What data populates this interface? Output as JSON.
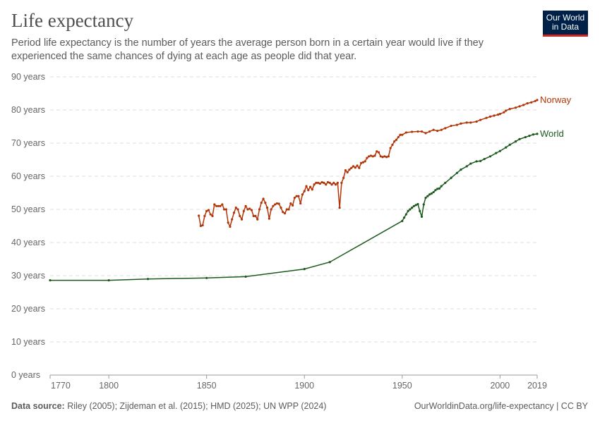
{
  "header": {
    "title": "Life expectancy",
    "subtitle": "Period life expectancy is the number of years the average person born in a certain year would live if they experienced the same chances of dying at each age as people did that year.",
    "logo_line1": "Our World",
    "logo_line2": "in Data"
  },
  "footer": {
    "source_label": "Data source:",
    "source_text": " Riley (2005); Zijdeman et al. (2015); HMD (2025); UN WPP (2024)",
    "link": "OurWorldinData.org/life-expectancy | CC BY"
  },
  "chart_data": {
    "type": "line",
    "title": "Life expectancy",
    "xlim": [
      1770,
      2019
    ],
    "ylim": [
      0,
      90
    ],
    "x_ticks": [
      1770,
      1800,
      1850,
      1900,
      1950,
      2000,
      2019
    ],
    "y_ticks": [
      0,
      10,
      20,
      30,
      40,
      50,
      60,
      70,
      80,
      90
    ],
    "y_tick_labels": [
      "0 years",
      "10 years",
      "20 years",
      "30 years",
      "40 years",
      "50 years",
      "60 years",
      "70 years",
      "80 years",
      "90 years"
    ],
    "grid": "horizontal dashed",
    "series": [
      {
        "name": "Norway",
        "color": "#b13507",
        "points": [
          [
            1846,
            48.1
          ],
          [
            1847,
            45.0
          ],
          [
            1848,
            45.2
          ],
          [
            1849,
            48.0
          ],
          [
            1850,
            49.5
          ],
          [
            1851,
            49.8
          ],
          [
            1852,
            48.5
          ],
          [
            1853,
            48.0
          ],
          [
            1854,
            51.5
          ],
          [
            1855,
            51.0
          ],
          [
            1856,
            51.0
          ],
          [
            1857,
            51.0
          ],
          [
            1858,
            51.5
          ],
          [
            1859,
            50.0
          ],
          [
            1860,
            50.0
          ],
          [
            1861,
            46.0
          ],
          [
            1862,
            44.8
          ],
          [
            1863,
            47.0
          ],
          [
            1864,
            49.0
          ],
          [
            1865,
            50.5
          ],
          [
            1866,
            50.0
          ],
          [
            1867,
            48.0
          ],
          [
            1868,
            47.0
          ],
          [
            1869,
            49.5
          ],
          [
            1870,
            51.0
          ],
          [
            1871,
            50.0
          ],
          [
            1872,
            50.2
          ],
          [
            1873,
            49.8
          ],
          [
            1874,
            48.0
          ],
          [
            1875,
            48.0
          ],
          [
            1876,
            47.0
          ],
          [
            1877,
            50.0
          ],
          [
            1878,
            52.0
          ],
          [
            1879,
            53.2
          ],
          [
            1880,
            52.0
          ],
          [
            1881,
            50.5
          ],
          [
            1882,
            47.2
          ],
          [
            1883,
            50.0
          ],
          [
            1884,
            51.0
          ],
          [
            1885,
            51.5
          ],
          [
            1886,
            51.8
          ],
          [
            1887,
            51.7
          ],
          [
            1888,
            50.5
          ],
          [
            1889,
            49.2
          ],
          [
            1890,
            48.8
          ],
          [
            1891,
            50.0
          ],
          [
            1892,
            50.0
          ],
          [
            1893,
            51.8
          ],
          [
            1894,
            51.2
          ],
          [
            1895,
            53.5
          ],
          [
            1896,
            54.0
          ],
          [
            1897,
            54.0
          ],
          [
            1898,
            51.8
          ],
          [
            1899,
            54.5
          ],
          [
            1900,
            55.5
          ],
          [
            1901,
            57.0
          ],
          [
            1902,
            55.8
          ],
          [
            1903,
            56.8
          ],
          [
            1904,
            56.0
          ],
          [
            1905,
            57.5
          ],
          [
            1906,
            58.0
          ],
          [
            1907,
            58.0
          ],
          [
            1908,
            57.8
          ],
          [
            1909,
            58.2
          ],
          [
            1910,
            58.0
          ],
          [
            1911,
            57.5
          ],
          [
            1912,
            58.2
          ],
          [
            1913,
            58.0
          ],
          [
            1914,
            57.5
          ],
          [
            1915,
            58.0
          ],
          [
            1916,
            57.5
          ],
          [
            1917,
            58.0
          ],
          [
            1918,
            50.5
          ],
          [
            1919,
            58.0
          ],
          [
            1920,
            59.5
          ],
          [
            1921,
            61.8
          ],
          [
            1922,
            61.2
          ],
          [
            1923,
            62.0
          ],
          [
            1924,
            62.5
          ],
          [
            1925,
            63.0
          ],
          [
            1926,
            62.6
          ],
          [
            1927,
            63.2
          ],
          [
            1928,
            62.5
          ],
          [
            1929,
            64.0
          ],
          [
            1930,
            64.2
          ],
          [
            1931,
            64.5
          ],
          [
            1932,
            65.5
          ],
          [
            1933,
            66.0
          ],
          [
            1934,
            66.2
          ],
          [
            1935,
            66.0
          ],
          [
            1936,
            66.2
          ],
          [
            1937,
            67.5
          ],
          [
            1938,
            67.2
          ],
          [
            1939,
            66.0
          ],
          [
            1940,
            65.8
          ],
          [
            1941,
            66.0
          ],
          [
            1942,
            65.8
          ],
          [
            1943,
            66.0
          ],
          [
            1944,
            68.5
          ],
          [
            1945,
            69.5
          ],
          [
            1946,
            70.5
          ],
          [
            1947,
            71.0
          ],
          [
            1948,
            71.8
          ],
          [
            1949,
            72.5
          ],
          [
            1950,
            72.5
          ],
          [
            1952,
            73.2
          ],
          [
            1955,
            73.4
          ],
          [
            1958,
            73.5
          ],
          [
            1960,
            73.5
          ],
          [
            1962,
            73.0
          ],
          [
            1964,
            73.5
          ],
          [
            1966,
            74.0
          ],
          [
            1968,
            73.7
          ],
          [
            1970,
            74.0
          ],
          [
            1972,
            74.5
          ],
          [
            1975,
            75.2
          ],
          [
            1978,
            75.5
          ],
          [
            1980,
            75.9
          ],
          [
            1983,
            76.2
          ],
          [
            1985,
            76.2
          ],
          [
            1988,
            76.5
          ],
          [
            1990,
            77.0
          ],
          [
            1993,
            77.6
          ],
          [
            1995,
            78.0
          ],
          [
            1997,
            78.3
          ],
          [
            1999,
            78.6
          ],
          [
            2000,
            78.8
          ],
          [
            2002,
            79.3
          ],
          [
            2003,
            79.8
          ],
          [
            2005,
            80.3
          ],
          [
            2008,
            80.7
          ],
          [
            2010,
            81.1
          ],
          [
            2012,
            81.5
          ],
          [
            2014,
            82.0
          ],
          [
            2016,
            82.3
          ],
          [
            2018,
            82.7
          ],
          [
            2019,
            83.0
          ]
        ]
      },
      {
        "name": "World",
        "color": "#1d5a1d",
        "points": [
          [
            1770,
            28.6
          ],
          [
            1800,
            28.6
          ],
          [
            1820,
            29.0
          ],
          [
            1850,
            29.3
          ],
          [
            1870,
            29.7
          ],
          [
            1900,
            32.0
          ],
          [
            1913,
            34.1
          ],
          [
            1950,
            46.5
          ],
          [
            1951,
            47.5
          ],
          [
            1952,
            48.5
          ],
          [
            1953,
            49.5
          ],
          [
            1954,
            50.0
          ],
          [
            1955,
            50.5
          ],
          [
            1956,
            51.0
          ],
          [
            1957,
            51.3
          ],
          [
            1958,
            51.6
          ],
          [
            1959,
            49.5
          ],
          [
            1960,
            47.8
          ],
          [
            1961,
            51.5
          ],
          [
            1962,
            53.5
          ],
          [
            1963,
            54.0
          ],
          [
            1964,
            54.5
          ],
          [
            1965,
            54.8
          ],
          [
            1966,
            55.2
          ],
          [
            1967,
            55.8
          ],
          [
            1968,
            56.2
          ],
          [
            1969,
            56.3
          ],
          [
            1970,
            57.0
          ],
          [
            1972,
            58.0
          ],
          [
            1975,
            59.5
          ],
          [
            1978,
            61.0
          ],
          [
            1980,
            62.0
          ],
          [
            1983,
            63.0
          ],
          [
            1985,
            63.8
          ],
          [
            1988,
            64.5
          ],
          [
            1990,
            64.6
          ],
          [
            1992,
            65.2
          ],
          [
            1995,
            66.0
          ],
          [
            1998,
            67.0
          ],
          [
            2000,
            67.6
          ],
          [
            2003,
            68.7
          ],
          [
            2005,
            69.5
          ],
          [
            2008,
            70.5
          ],
          [
            2010,
            71.2
          ],
          [
            2013,
            71.8
          ],
          [
            2015,
            72.2
          ],
          [
            2017,
            72.6
          ],
          [
            2019,
            72.8
          ]
        ]
      }
    ]
  }
}
